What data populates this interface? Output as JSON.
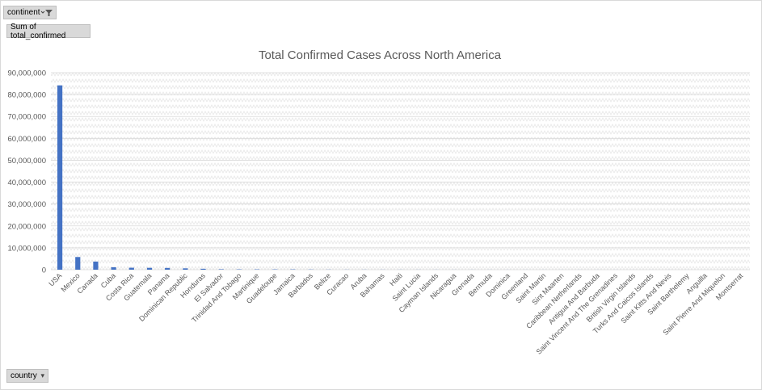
{
  "filter_button": {
    "label": "continent",
    "icon": "filter-icon"
  },
  "value_field_button": {
    "label": "Sum of total_confirmed"
  },
  "axis_field_button": {
    "label": "country",
    "icon": "dropdown-arrow-icon"
  },
  "colors": {
    "bar": "#4472c4",
    "axis_text": "#595959",
    "title": "#595959",
    "grid": "#d9d9d9"
  },
  "chart_data": {
    "type": "bar",
    "title": "Total Confirmed Cases Across North America",
    "xlabel": "",
    "ylabel": "",
    "ylim": [
      0,
      90000000
    ],
    "yticks": [
      "0",
      "10,000,000",
      "20,000,000",
      "30,000,000",
      "40,000,000",
      "50,000,000",
      "60,000,000",
      "70,000,000",
      "80,000,000",
      "90,000,000"
    ],
    "grid": true,
    "legend": "none",
    "categories": [
      "USA",
      "Mexico",
      "Canada",
      "Cuba",
      "Costa Rica",
      "Guatemala",
      "Panama",
      "Dominican Republic",
      "Honduras",
      "El Salvador",
      "Trinidad And Tobago",
      "Martinique",
      "Guadeloupe",
      "Jamaica",
      "Barbados",
      "Belize",
      "Curacao",
      "Aruba",
      "Bahamas",
      "Haiti",
      "Saint Lucia",
      "Cayman Islands",
      "Nicaragua",
      "Grenada",
      "Bermuda",
      "Dominica",
      "Greenland",
      "Saint Martin",
      "Sint Maarten",
      "Caribbean Netherlands",
      "Antigua And Barbuda",
      "Saint Vincent And The Grenadines",
      "British Virgin Islands",
      "Turks And Caicos Islands",
      "Saint Kitts And Nevis",
      "Saint Barthelemy",
      "Anguilla",
      "Saint Pierre And Miquelon",
      "Montserrat"
    ],
    "values": [
      84200000,
      5800000,
      3700000,
      1100000,
      900000,
      850000,
      800000,
      620000,
      420000,
      200000,
      160000,
      150000,
      140000,
      140000,
      90000,
      60000,
      45000,
      40000,
      35000,
      31000,
      28000,
      25000,
      18000,
      18000,
      13000,
      12000,
      11000,
      10000,
      10000,
      10000,
      9000,
      8500,
      7000,
      6500,
      6000,
      5000,
      3500,
      3000,
      1500
    ]
  }
}
